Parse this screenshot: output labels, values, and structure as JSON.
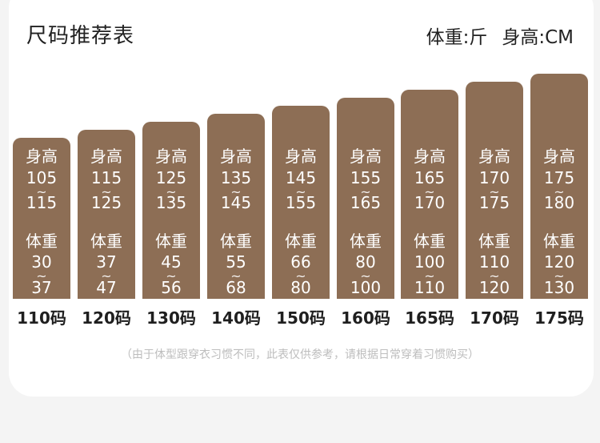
{
  "title": "尺码推荐表",
  "units": {
    "weight": "体重:斤",
    "height": "身高:CM"
  },
  "row_labels": {
    "height": "身高",
    "weight": "体重"
  },
  "tilde": "~",
  "sizes": [
    {
      "label": "110码",
      "height_min": "105",
      "height_max": "115",
      "weight_min": "30",
      "weight_max": "37"
    },
    {
      "label": "120码",
      "height_min": "115",
      "height_max": "125",
      "weight_min": "37",
      "weight_max": "47"
    },
    {
      "label": "130码",
      "height_min": "125",
      "height_max": "135",
      "weight_min": "45",
      "weight_max": "56"
    },
    {
      "label": "140码",
      "height_min": "135",
      "height_max": "145",
      "weight_min": "55",
      "weight_max": "68"
    },
    {
      "label": "150码",
      "height_min": "145",
      "height_max": "155",
      "weight_min": "66",
      "weight_max": "80"
    },
    {
      "label": "160码",
      "height_min": "155",
      "height_max": "165",
      "weight_min": "80",
      "weight_max": "100"
    },
    {
      "label": "165码",
      "height_min": "165",
      "height_max": "170",
      "weight_min": "100",
      "weight_max": "110"
    },
    {
      "label": "170码",
      "height_min": "170",
      "height_max": "175",
      "weight_min": "110",
      "weight_max": "120"
    },
    {
      "label": "175码",
      "height_min": "175",
      "height_max": "180",
      "weight_min": "120",
      "weight_max": "130"
    }
  ],
  "note": "（由于体型跟穿衣习惯不同，此表仅供参考，请根据日常穿着习惯购买）",
  "colors": {
    "bar": "#8d6e55",
    "background": "#f4f4f4",
    "card": "#ffffff"
  }
}
